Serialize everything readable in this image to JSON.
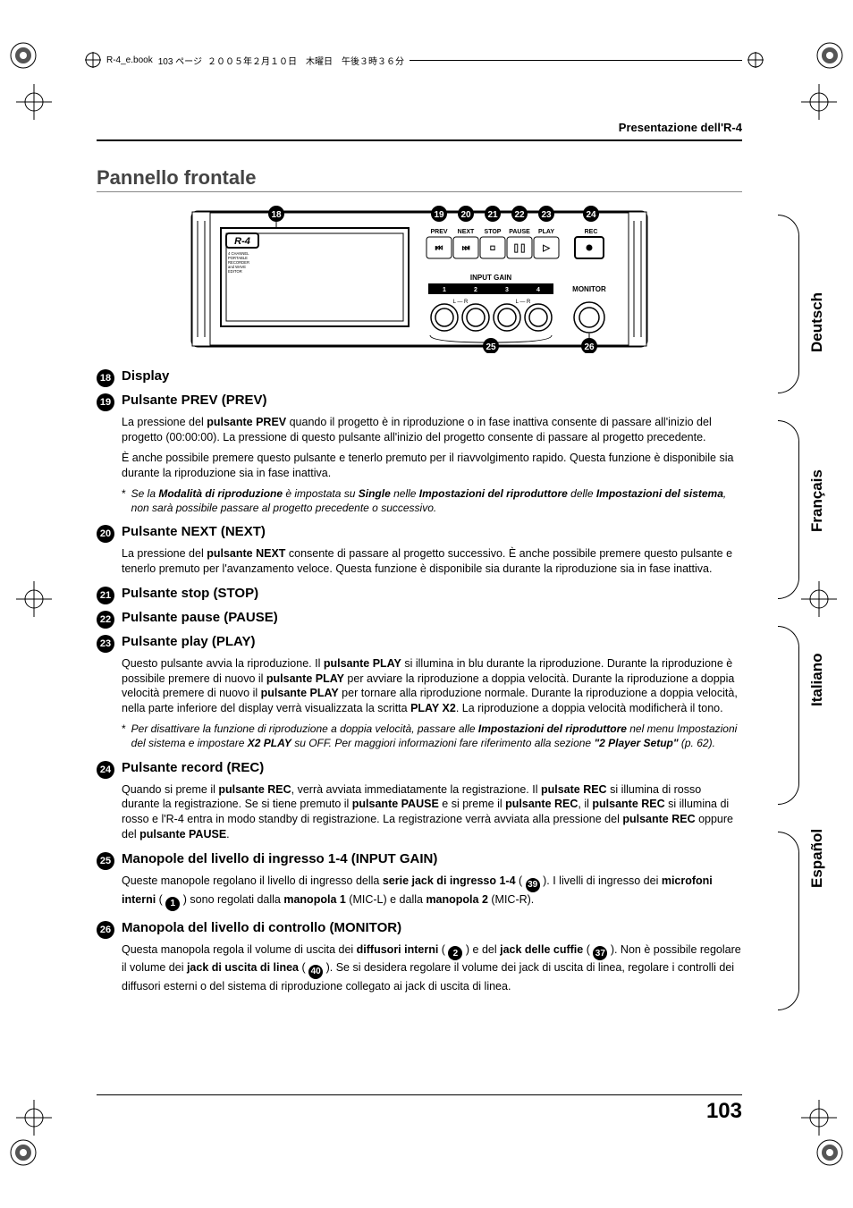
{
  "header": {
    "filename": "R-4_e.book",
    "page_label": "103 ページ",
    "date": "２００５年２月１０日　木曜日　午後３時３６分"
  },
  "running_head": "Presentazione dell'R-4",
  "section_title": "Pannello frontale",
  "page_number": "103",
  "figure": {
    "device_label": "R-4",
    "device_subtext": "4 CHANNEL\nPORTABLE\nRECORDER\nand WAVE\nEDITOR",
    "callouts": [
      "18",
      "19",
      "20",
      "21",
      "22",
      "23",
      "24",
      "25",
      "26"
    ],
    "transport": [
      "PREV",
      "NEXT",
      "STOP",
      "PAUSE",
      "PLAY",
      "REC"
    ],
    "gain_label": "INPUT GAIN",
    "gain_channels": [
      "1",
      "2",
      "3",
      "4"
    ],
    "lr_left": "L — R",
    "lr_right": "L — R",
    "monitor_label": "MONITOR"
  },
  "items": [
    {
      "num": "18",
      "title": "Display"
    },
    {
      "num": "19",
      "title": "Pulsante PREV (PREV)",
      "paras": [
        "La pressione del <b>pulsante PREV</b> quando il progetto è in riproduzione o in fase inattiva consente di passare all'inizio del progetto (00:00:00). La pressione di questo pulsante all'inizio del progetto consente di passare al progetto precedente.",
        "È anche possibile premere questo pulsante e tenerlo premuto per il riavvolgimento rapido. Questa funzione è disponibile sia durante la riproduzione sia in fase inattiva."
      ],
      "note": "Se la <bi>Modalità di riproduzione</bi> è impostata su <bi>Single</bi> nelle <bi>Impostazioni del riproduttore</bi> delle <bi>Impostazioni del sistema</bi>, non sarà possibile passare al progetto precedente o successivo."
    },
    {
      "num": "20",
      "title": "Pulsante NEXT (NEXT)",
      "paras": [
        "La pressione del <b>pulsante NEXT</b> consente di passare al progetto successivo. È anche possibile premere questo pulsante e tenerlo premuto per l'avanzamento veloce. Questa funzione è disponibile sia durante la riproduzione sia in fase inattiva."
      ]
    },
    {
      "num": "21",
      "title": "Pulsante stop (STOP)"
    },
    {
      "num": "22",
      "title": "Pulsante pause (PAUSE)"
    },
    {
      "num": "23",
      "title": "Pulsante play (PLAY)",
      "paras": [
        "Questo pulsante avvia la riproduzione. Il <b>pulsante PLAY</b> si illumina in blu durante la riproduzione. Durante la riproduzione è possibile premere di nuovo il <b>pulsante PLAY</b> per avviare la riproduzione a doppia velocità. Durante la riproduzione a doppia velocità premere di nuovo il <b>pulsante PLAY</b> per tornare alla riproduzione normale. Durante la riproduzione a doppia velocità, nella parte inferiore del display verrà visualizzata la scritta <b>PLAY X2</b>. La riproduzione a doppia velocità modificherà il tono."
      ],
      "note": "Per disattivare la funzione di riproduzione a doppia velocità, passare alle <bi>Impostazioni del riproduttore</bi> nel menu Impostazioni del sistema e impostare <bi>X2 PLAY</bi> su OFF. Per maggiori informazioni fare riferimento alla sezione <bi>\"2 Player Setup\"</bi> (p. 62)."
    },
    {
      "num": "24",
      "title": "Pulsante record (REC)",
      "paras": [
        "Quando si preme il <b>pulsante REC</b>, verrà avviata immediatamente la registrazione. Il <b>pulsate REC</b> si illumina di rosso durante la registrazione. Se si tiene premuto il <b>pulsante PAUSE</b> e si preme il <b>pulsante REC</b>, il <b>pulsante REC</b> si illumina di rosso e l'R-4 entra in modo standby di registrazione. La registrazione verrà avviata alla pressione del <b>pulsante REC</b> oppure del <b>pulsante PAUSE</b>."
      ]
    },
    {
      "num": "25",
      "title": "Manopole del livello di ingresso 1-4 (INPUT GAIN)",
      "paras": [
        "Queste manopole regolano il livello di ingresso della <b>serie jack di ingresso 1-4</b> ( <c>39</c> ). I livelli di ingresso dei <b>microfoni interni</b> ( <c>1</c> ) sono regolati dalla <b>manopola 1</b> (MIC-L) e dalla <b>manopola 2</b> (MIC-R)."
      ]
    },
    {
      "num": "26",
      "title": "Manopola del livello di controllo (MONITOR)",
      "paras": [
        "Questa manopola regola il volume di uscita dei <b>diffusori interni</b> ( <c>2</c> ) e del <b>jack delle cuffie</b> ( <c>37</c> ). Non è possibile regolare il volume dei <b>jack di uscita di linea</b> ( <c>40</c> ). Se si desidera regolare il volume dei jack di uscita di linea, regolare i controlli dei diffusori esterni o del sistema di riproduzione collegato ai jack di uscita di linea."
      ]
    }
  ],
  "lang_tabs": [
    "Deutsch",
    "Français",
    "Italiano",
    "Español"
  ],
  "colors": {
    "text": "#000000",
    "title_gray": "#444444",
    "rule_gray": "#888888",
    "bg": "#ffffff"
  }
}
